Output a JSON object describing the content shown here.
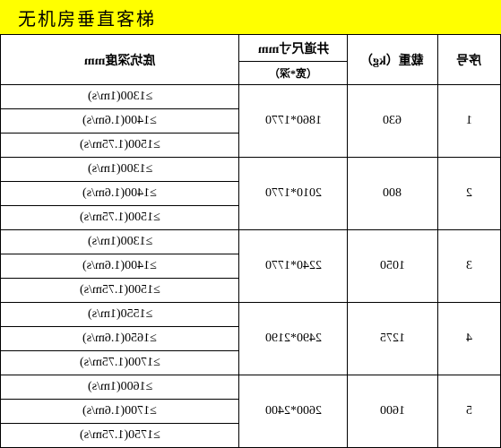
{
  "title": "无机房垂直客梯",
  "headers": {
    "seq": "序号",
    "load": "载重（kg）",
    "shaft_main": "井道尺寸mm",
    "shaft_sub": "（宽*深）",
    "pit": "底坑深度mm"
  },
  "rows": [
    {
      "seq": "1",
      "load": "630",
      "shaft": "1860*1770",
      "pits": [
        "≥1300(1m/s)",
        "≥1400(1.6m/s)",
        "≥1500(1.75m/s)"
      ]
    },
    {
      "seq": "2",
      "load": "800",
      "shaft": "2010*1770",
      "pits": [
        "≥1300(1m/s)",
        "≥1400(1.6m/s)",
        "≥1500(1.75m/s)"
      ]
    },
    {
      "seq": "3",
      "load": "1050",
      "shaft": "2240*1770",
      "pits": [
        "≥1300(1m/s)",
        "≥1400(1.6m/s)",
        "≥1500(1.75m/s)"
      ]
    },
    {
      "seq": "4",
      "load": "1275",
      "shaft": "2490*2190",
      "pits": [
        "≥1550(1m/s)",
        "≥1650(1.6m/s)",
        "≥1700(1.75m/s)"
      ]
    },
    {
      "seq": "5",
      "load": "1600",
      "shaft": "2600*2400",
      "pits": [
        "≥1600(1m/s)",
        "≥1700(1.6m/s)",
        "≥1750(1.75m/s)"
      ]
    }
  ],
  "colors": {
    "title_bg": "#ffff00",
    "border": "#000000",
    "text": "#000000",
    "bg": "#ffffff"
  }
}
